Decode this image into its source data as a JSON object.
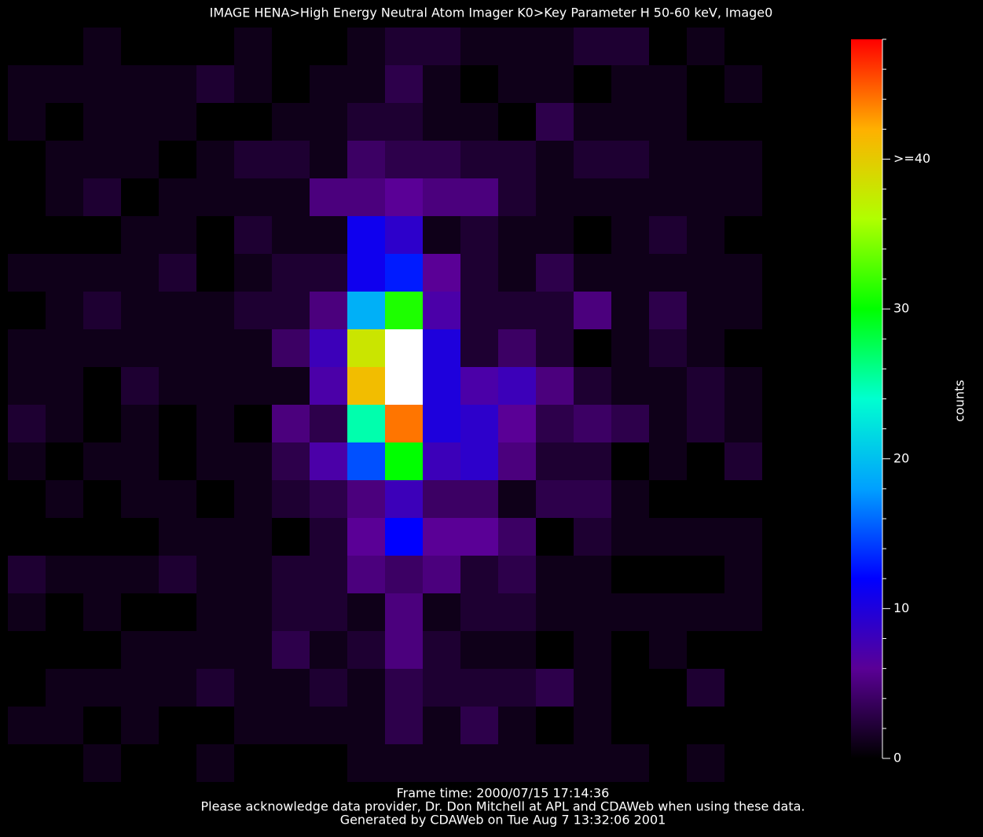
{
  "chart_data": {
    "type": "heatmap",
    "title": "IMAGE  HENA>High Energy Neutral Atom Imager  K0>Key Parameter H 50-60 keV, Image0",
    "z": [
      [
        0,
        0,
        1,
        0,
        0,
        0,
        1,
        0,
        0,
        1,
        2,
        2,
        1,
        1,
        1,
        2,
        2,
        0,
        1,
        0
      ],
      [
        1,
        1,
        1,
        1,
        1,
        2,
        1,
        0,
        1,
        1,
        3,
        1,
        0,
        1,
        1,
        0,
        1,
        1,
        0,
        1
      ],
      [
        1,
        0,
        1,
        1,
        1,
        0,
        0,
        1,
        1,
        2,
        2,
        1,
        1,
        0,
        3,
        1,
        1,
        1,
        0,
        0
      ],
      [
        0,
        1,
        1,
        1,
        0,
        1,
        2,
        2,
        1,
        4,
        3,
        3,
        2,
        2,
        1,
        2,
        2,
        1,
        1,
        1
      ],
      [
        0,
        1,
        2,
        0,
        1,
        1,
        1,
        1,
        5,
        5,
        6,
        5,
        5,
        2,
        1,
        1,
        1,
        1,
        1,
        1
      ],
      [
        0,
        0,
        0,
        1,
        1,
        0,
        2,
        1,
        1,
        11,
        9,
        1,
        2,
        1,
        1,
        0,
        1,
        2,
        1,
        0
      ],
      [
        1,
        1,
        1,
        1,
        2,
        0,
        1,
        2,
        2,
        11,
        13,
        6,
        2,
        1,
        3,
        1,
        1,
        1,
        1,
        1
      ],
      [
        0,
        1,
        2,
        1,
        1,
        1,
        2,
        2,
        5,
        19,
        31,
        7,
        2,
        2,
        2,
        5,
        1,
        3,
        1,
        1
      ],
      [
        1,
        1,
        1,
        1,
        1,
        1,
        1,
        4,
        8,
        38,
        55,
        10,
        2,
        4,
        2,
        0,
        1,
        2,
        1,
        0
      ],
      [
        1,
        1,
        0,
        2,
        1,
        1,
        1,
        1,
        7,
        41,
        60,
        10,
        7,
        8,
        5,
        2,
        1,
        1,
        2,
        1
      ],
      [
        2,
        1,
        0,
        1,
        0,
        1,
        0,
        5,
        3,
        25,
        44,
        10,
        9,
        6,
        3,
        4,
        3,
        1,
        2,
        1
      ],
      [
        1,
        0,
        1,
        1,
        0,
        1,
        1,
        3,
        7,
        15,
        30,
        8,
        9,
        5,
        2,
        2,
        0,
        1,
        0,
        2
      ],
      [
        0,
        1,
        0,
        1,
        1,
        0,
        1,
        2,
        3,
        5,
        8,
        4,
        4,
        1,
        3,
        3,
        1,
        0,
        0,
        0
      ],
      [
        0,
        0,
        0,
        0,
        1,
        1,
        1,
        0,
        2,
        6,
        12,
        6,
        6,
        4,
        0,
        2,
        1,
        1,
        1,
        1
      ],
      [
        2,
        1,
        1,
        1,
        2,
        1,
        1,
        2,
        2,
        5,
        4,
        5,
        2,
        3,
        1,
        1,
        0,
        0,
        0,
        1
      ],
      [
        1,
        0,
        1,
        0,
        0,
        1,
        1,
        2,
        2,
        1,
        5,
        1,
        2,
        2,
        1,
        1,
        1,
        1,
        1,
        1
      ],
      [
        0,
        0,
        0,
        1,
        1,
        1,
        1,
        3,
        1,
        2,
        5,
        2,
        1,
        1,
        0,
        1,
        0,
        1,
        0,
        0
      ],
      [
        0,
        1,
        1,
        1,
        1,
        2,
        1,
        1,
        2,
        1,
        3,
        2,
        2,
        2,
        3,
        1,
        0,
        0,
        2,
        0
      ],
      [
        1,
        1,
        0,
        1,
        0,
        0,
        1,
        1,
        1,
        1,
        3,
        1,
        3,
        1,
        0,
        1,
        0,
        0,
        0,
        0
      ],
      [
        0,
        0,
        1,
        0,
        0,
        1,
        0,
        0,
        0,
        1,
        1,
        1,
        1,
        1,
        1,
        1,
        1,
        0,
        1,
        0
      ]
    ],
    "zlim": [
      0,
      48
    ],
    "zticks": [
      0,
      10,
      20,
      30,
      {
        "value": 40,
        "label": ">=40"
      }
    ],
    "zticks_minor": [
      2,
      4,
      6,
      8,
      12,
      14,
      16,
      18,
      22,
      24,
      26,
      28,
      32,
      34,
      36,
      38,
      42,
      44,
      46,
      48
    ],
    "colorbar_label": "counts",
    "colorscale": [
      "#000000",
      "#5a0096",
      "#0000ff",
      "#00a0ff",
      "#00ffd0",
      "#00ff00",
      "#b0ff00",
      "#ffb000",
      "#ff0000"
    ],
    "over_color": "#ffffff",
    "footer": [
      "Frame time: 2000/07/15 17:14:36",
      "Please acknowledge data provider, Dr. Don Mitchell at APL and CDAWeb when using these data.",
      "Generated by CDAWeb on Tue Aug  7 13:32:06 2001"
    ]
  }
}
